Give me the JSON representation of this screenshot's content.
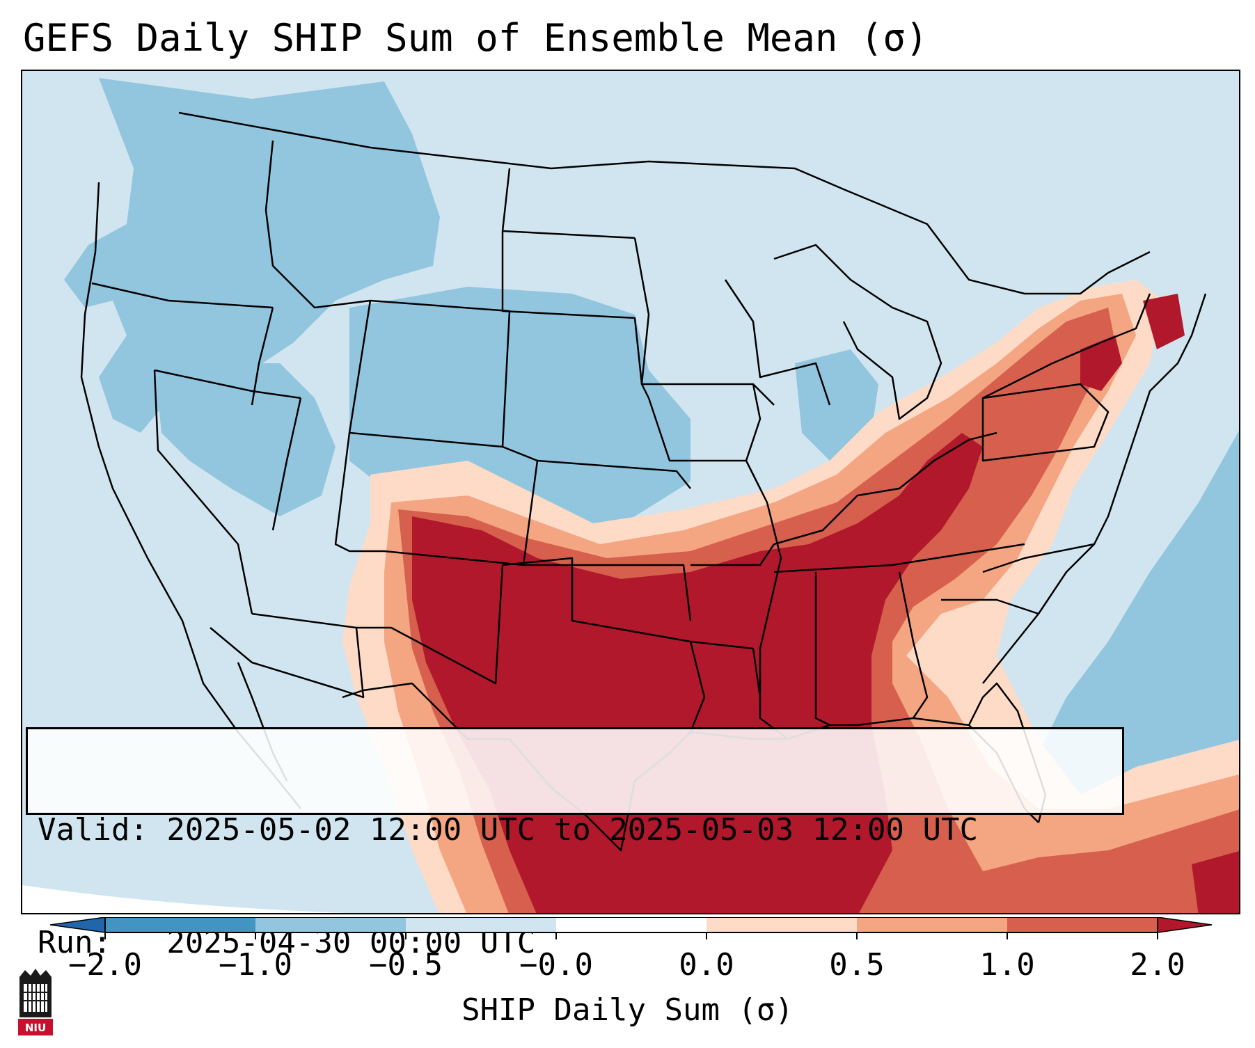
{
  "title": "GEFS Daily SHIP Sum of Ensemble Mean (σ)",
  "info": {
    "valid_line": "Valid: 2025-05-02 12:00 UTC to 2025-05-03 12:00 UTC",
    "run_line": "Run:   2025-04-30 00:00 UTC"
  },
  "colorbar": {
    "label": "SHIP Daily Sum (σ)",
    "ticks": [
      "−2.0",
      "−1.0",
      "−0.5",
      "−0.0",
      "0.0",
      "0.5",
      "1.0",
      "2.0"
    ],
    "colors": [
      "#4393c3",
      "#92c5de",
      "#d1e5f0",
      "#ffffff",
      "#fddbc7",
      "#f4a582",
      "#d6604d",
      "#b2182b"
    ]
  },
  "logo": {
    "text": "NIU"
  },
  "colors": {
    "background": "#d1e5f0",
    "negative_mid": "#92c5de",
    "positive_light": "#fddbc7",
    "positive_mid": "#f4a582",
    "positive_strong": "#d6604d",
    "positive_max": "#b2182b",
    "borders": "#000000"
  }
}
